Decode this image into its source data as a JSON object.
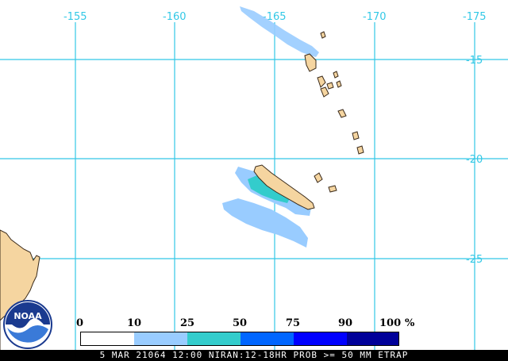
{
  "map": {
    "longitude_labels": [
      "-155",
      "-160",
      "-165",
      "-170",
      "-175"
    ],
    "latitude_labels": [
      "-15",
      "-20",
      "-25"
    ],
    "colors": {
      "background": "#ffffff",
      "grid": "#33c8e6",
      "land": "#f5d5a0",
      "coast": "#3a2a1a"
    }
  },
  "legend": {
    "ticks": [
      "0",
      "10",
      "25",
      "50",
      "75",
      "90",
      "100"
    ],
    "unit": "%",
    "colors": [
      "#ffffff",
      "#99ccff",
      "#33cccc",
      "#0066ff",
      "#0000ff",
      "#000099"
    ]
  },
  "footer": {
    "text": "5 MAR 21064 12:00 NIRAN:12-18HR PROB >= 50 MM ETRAP"
  },
  "logo": {
    "text": "NOAA"
  }
}
